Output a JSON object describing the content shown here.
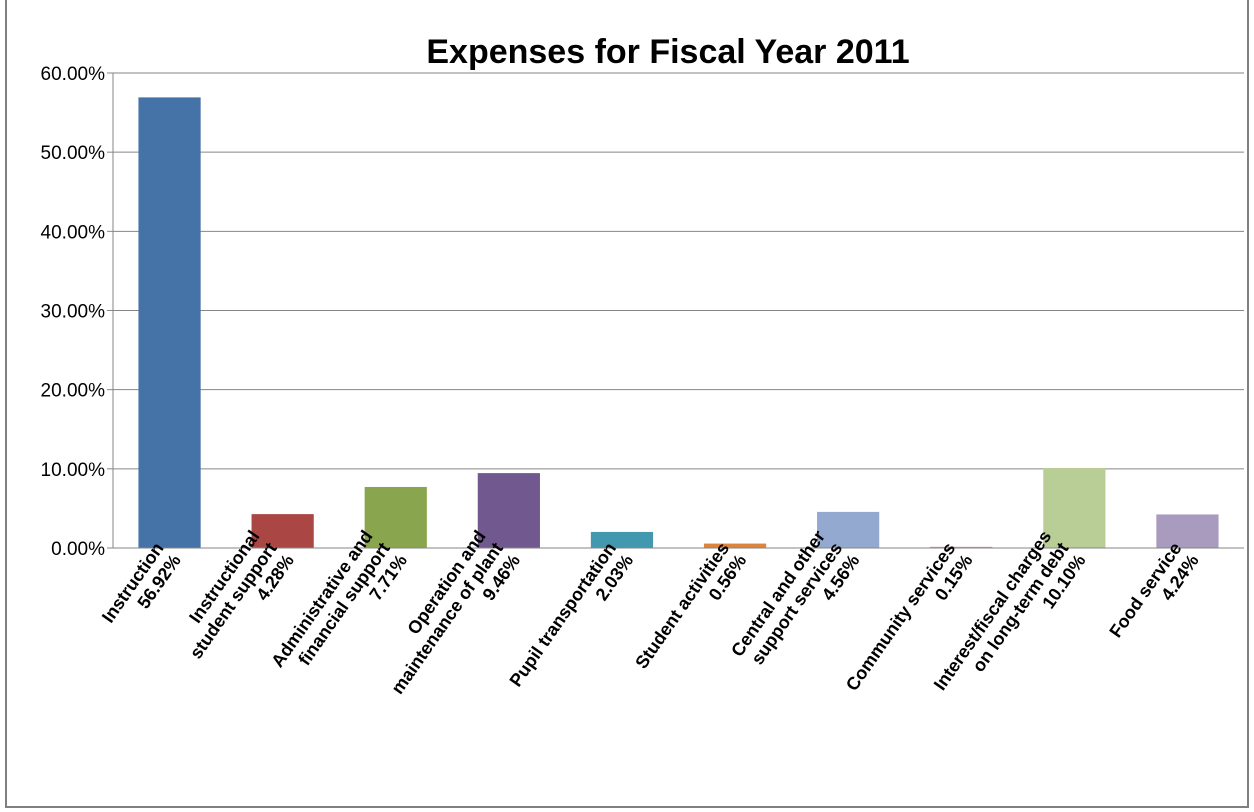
{
  "chart_data": {
    "type": "bar",
    "title": "Expenses for Fiscal Year 2011",
    "xlabel": "",
    "ylabel": "",
    "ylim": [
      0,
      60
    ],
    "yticks": [
      "0.00%",
      "10.00%",
      "20.00%",
      "30.00%",
      "40.00%",
      "50.00%",
      "60.00%"
    ],
    "grid": true,
    "legend": "none",
    "categories": [
      {
        "lines": [
          "Instruction",
          "56.92%"
        ],
        "value": 56.92,
        "color": "#4572A7"
      },
      {
        "lines": [
          "Instructional",
          "student support",
          "4.28%"
        ],
        "value": 4.28,
        "color": "#AA4643"
      },
      {
        "lines": [
          "Administrative and",
          "financial support",
          "7.71%"
        ],
        "value": 7.71,
        "color": "#89A54E"
      },
      {
        "lines": [
          "Operation and",
          "maintenance of plant",
          "9.46%"
        ],
        "value": 9.46,
        "color": "#71588F"
      },
      {
        "lines": [
          "Pupil transportation",
          "2.03%"
        ],
        "value": 2.03,
        "color": "#4198AF"
      },
      {
        "lines": [
          "Student activities",
          "0.56%"
        ],
        "value": 0.56,
        "color": "#DB843D"
      },
      {
        "lines": [
          "Central and other",
          "support services",
          "4.56%"
        ],
        "value": 4.56,
        "color": "#93A9CF"
      },
      {
        "lines": [
          "Community services",
          "0.15%"
        ],
        "value": 0.15,
        "color": "#D19392"
      },
      {
        "lines": [
          "Interest/fiscal charges",
          "on long-term debt",
          "10.10%"
        ],
        "value": 10.1,
        "color": "#B9CD96"
      },
      {
        "lines": [
          "Food service",
          "4.24%"
        ],
        "value": 4.24,
        "color": "#A99BBD"
      }
    ]
  }
}
